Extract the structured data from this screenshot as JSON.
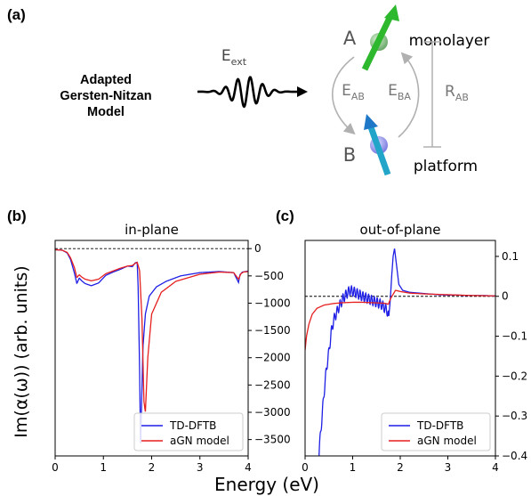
{
  "panel_labels": {
    "a": "(a)",
    "b": "(b)",
    "c": "(c)"
  },
  "schematic": {
    "model_title": [
      "Adapted",
      "Gersten-Nitzan",
      "Model"
    ],
    "field_symbol": "E",
    "field_subscript": "ext",
    "node_a": "A",
    "node_b": "B",
    "top_label": "monolayer",
    "bottom_label": "platform",
    "coupling_ab_symbol": "E",
    "coupling_ab_subscript": "AB",
    "coupling_ba_symbol": "E",
    "coupling_ba_subscript": "BA",
    "distance_symbol": "R",
    "distance_subscript": "AB"
  },
  "shared_axes": {
    "xlabel": "Energy (eV)",
    "ylabel": "Im(α(ω)) (arb. units)"
  },
  "colors": {
    "td_dftb": "#1f1fe6",
    "agn": "#e61f1f",
    "arrow_green": "#2db82d",
    "arrow_blue": "#1f8fd6"
  },
  "chart_data": [
    {
      "type": "line",
      "title": "in-plane",
      "xlim": [
        0,
        4
      ],
      "ylim": [
        -3800,
        150
      ],
      "xticks": [
        0,
        1,
        2,
        3,
        4
      ],
      "yticks": [
        0,
        -500,
        -1000,
        -1500,
        -2000,
        -2500,
        -3000,
        -3500
      ],
      "y_axis_side": "right",
      "reference_line": 0,
      "legend": [
        "TD-DFTB",
        "aGN model"
      ],
      "legend_position": "lower-right",
      "series": [
        {
          "name": "TD-DFTB",
          "x": [
            0,
            0.15,
            0.25,
            0.32,
            0.4,
            0.45,
            0.5,
            0.55,
            0.62,
            0.75,
            0.9,
            1.05,
            1.2,
            1.35,
            1.5,
            1.6,
            1.66,
            1.7,
            1.72,
            1.75,
            1.77,
            1.79,
            1.82,
            1.87,
            1.95,
            2.1,
            2.3,
            2.6,
            3.0,
            3.4,
            3.7,
            3.8,
            3.83,
            3.88,
            3.95,
            4.0
          ],
          "y": [
            -20,
            -30,
            -80,
            -200,
            -450,
            -640,
            -540,
            -590,
            -640,
            -680,
            -630,
            -490,
            -430,
            -380,
            -320,
            -330,
            -260,
            -250,
            -700,
            -2200,
            -3650,
            -2900,
            -1800,
            -1200,
            -870,
            -700,
            -600,
            -500,
            -440,
            -420,
            -440,
            -620,
            -480,
            -430,
            -420,
            -410
          ]
        },
        {
          "name": "aGN model",
          "x": [
            0,
            0.15,
            0.25,
            0.32,
            0.4,
            0.45,
            0.5,
            0.55,
            0.62,
            0.75,
            0.9,
            1.05,
            1.2,
            1.35,
            1.5,
            1.6,
            1.66,
            1.7,
            1.75,
            1.8,
            1.84,
            1.87,
            1.92,
            2.0,
            2.2,
            2.5,
            3.0,
            3.4,
            3.7,
            3.8,
            3.85,
            3.9,
            4.0
          ],
          "y": [
            -20,
            -30,
            -70,
            -170,
            -350,
            -530,
            -480,
            -520,
            -560,
            -590,
            -560,
            -460,
            -410,
            -360,
            -320,
            -310,
            -270,
            -250,
            -400,
            -1300,
            -2800,
            -3000,
            -2000,
            -1200,
            -800,
            -600,
            -470,
            -430,
            -440,
            -560,
            -460,
            -430,
            -420
          ]
        }
      ]
    },
    {
      "type": "line",
      "title": "out-of-plane",
      "xlim": [
        0,
        4
      ],
      "ylim": [
        -0.4,
        0.14
      ],
      "xticks": [
        0,
        1,
        2,
        3,
        4
      ],
      "yticks": [
        0.1,
        0.0,
        -0.1,
        -0.2,
        -0.3,
        -0.4
      ],
      "y_axis_side": "right",
      "reference_line": 0,
      "legend": [
        "TD-DFTB",
        "aGN model"
      ],
      "legend_position": "lower-right",
      "series": [
        {
          "name": "TD-DFTB",
          "x": [
            0.25,
            0.28,
            0.3,
            0.35,
            0.4,
            0.45,
            0.5,
            0.55,
            0.6,
            0.7,
            0.8,
            0.9,
            0.95,
            1.05,
            1.2,
            1.4,
            1.6,
            1.72,
            1.76,
            1.79,
            1.82,
            1.85,
            1.88,
            1.92,
            1.97,
            2.05,
            2.2,
            2.4,
            2.6,
            2.8,
            3.0,
            3.2,
            3.4,
            3.6,
            3.8,
            3.9,
            4.0
          ],
          "y": [
            -0.55,
            -0.44,
            -0.38,
            -0.31,
            -0.24,
            -0.18,
            -0.14,
            -0.09,
            -0.06,
            -0.03,
            -0.005,
            0.01,
            0.015,
            0.01,
            0.0,
            -0.01,
            -0.02,
            -0.035,
            -0.05,
            -0.01,
            0.05,
            0.1,
            0.12,
            0.08,
            0.03,
            0.015,
            0.01,
            0.008,
            0.006,
            0.004,
            0.003,
            0.003,
            0.002,
            0.002,
            0.002,
            0.001,
            0.001
          ],
          "oscillation": {
            "from": 0.3,
            "to": 1.75,
            "amplitude": 0.012,
            "period": 0.06
          }
        },
        {
          "name": "aGN model",
          "x": [
            0,
            0.03,
            0.08,
            0.15,
            0.25,
            0.4,
            0.6,
            0.8,
            1.0,
            1.2,
            1.4,
            1.6,
            1.7,
            1.75,
            1.8,
            1.85,
            1.9,
            2.0,
            2.2,
            2.5,
            3.0,
            3.5,
            4.0
          ],
          "y": [
            -0.135,
            -0.1,
            -0.07,
            -0.045,
            -0.03,
            -0.022,
            -0.018,
            -0.016,
            -0.015,
            -0.015,
            -0.016,
            -0.017,
            -0.018,
            -0.02,
            -0.005,
            0.005,
            0.015,
            0.012,
            0.008,
            0.006,
            0.004,
            0.002,
            0.001
          ]
        }
      ]
    }
  ]
}
